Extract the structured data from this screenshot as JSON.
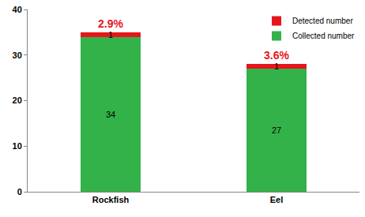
{
  "chart_data": {
    "type": "bar",
    "stacked": true,
    "categories": [
      "Rockfish",
      "Eel"
    ],
    "series": [
      {
        "name": "Collected number",
        "color": "#33b24a",
        "values": [
          34,
          27
        ]
      },
      {
        "name": "Detected number",
        "color": "#e8141b",
        "values": [
          1,
          1
        ]
      }
    ],
    "ylim": [
      0,
      40
    ],
    "yticks": [
      0,
      10,
      20,
      30,
      40
    ],
    "grid": false,
    "legend": "upper right",
    "data_labels": true,
    "annotations": [
      {
        "category": "Rockfish",
        "text": "2.9%"
      },
      {
        "category": "Eel",
        "text": "3.6%"
      }
    ]
  }
}
